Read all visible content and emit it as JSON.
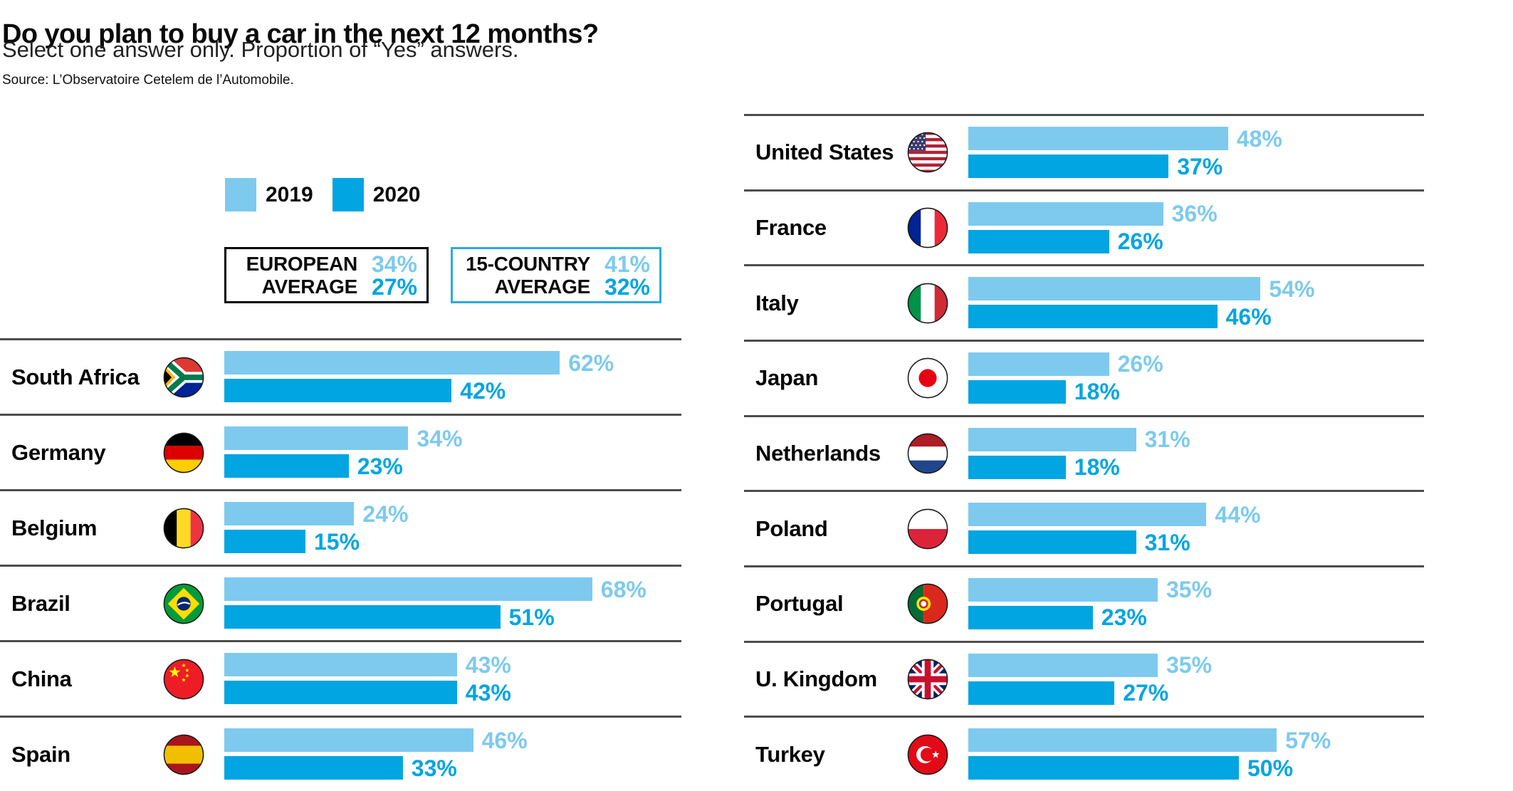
{
  "chart_data": {
    "type": "bar",
    "orientation": "horizontal",
    "title": "Do you plan to buy a car in the next 12 months?",
    "subtitle": "Select one answer only. Proportion of “Yes” answers.",
    "source": "Source: L’Observatoire Cetelem de l’Automobile.",
    "series_names": [
      "2019",
      "2020"
    ],
    "unit": "%",
    "xlim": [
      0,
      100
    ],
    "legend_position": "top-left",
    "averages": [
      {
        "name": "EUROPEAN AVERAGE",
        "label_line1": "EUROPEAN",
        "label_line2": "AVERAGE",
        "values": [
          34,
          27
        ],
        "values_display": [
          "34%",
          "27%"
        ],
        "border": "black"
      },
      {
        "name": "15-COUNTRY AVERAGE",
        "label_line1": "15-COUNTRY",
        "label_line2": "AVERAGE",
        "values": [
          41,
          32
        ],
        "values_display": [
          "41%",
          "32%"
        ],
        "border": "blue"
      }
    ],
    "columns": {
      "left": [
        {
          "country": "South Africa",
          "flag": "za",
          "values": [
            62,
            42
          ]
        },
        {
          "country": "Germany",
          "flag": "de",
          "values": [
            34,
            23
          ]
        },
        {
          "country": "Belgium",
          "flag": "be",
          "values": [
            24,
            15
          ]
        },
        {
          "country": "Brazil",
          "flag": "br",
          "values": [
            68,
            51
          ]
        },
        {
          "country": "China",
          "flag": "cn",
          "values": [
            43,
            43
          ]
        },
        {
          "country": "Spain",
          "flag": "es",
          "values": [
            46,
            33
          ]
        }
      ],
      "right": [
        {
          "country": "United States",
          "flag": "us",
          "values": [
            48,
            37
          ]
        },
        {
          "country": "France",
          "flag": "fr",
          "values": [
            36,
            26
          ]
        },
        {
          "country": "Italy",
          "flag": "it",
          "values": [
            54,
            46
          ]
        },
        {
          "country": "Japan",
          "flag": "jp",
          "values": [
            26,
            18
          ]
        },
        {
          "country": "Netherlands",
          "flag": "nl",
          "values": [
            31,
            18
          ]
        },
        {
          "country": "Poland",
          "flag": "pl",
          "values": [
            44,
            31
          ]
        },
        {
          "country": "Portugal",
          "flag": "pt",
          "values": [
            35,
            23
          ]
        },
        {
          "country": "U. Kingdom",
          "flag": "gb",
          "values": [
            35,
            27
          ]
        },
        {
          "country": "Turkey",
          "flag": "tr",
          "values": [
            57,
            50
          ]
        }
      ]
    }
  },
  "colors": {
    "series_2019": "#7DCAEE",
    "series_2020": "#00A5E2",
    "divider": "#4d4d4d",
    "box_border_blue": "#29ABE2",
    "text": "#0a0a0a"
  }
}
